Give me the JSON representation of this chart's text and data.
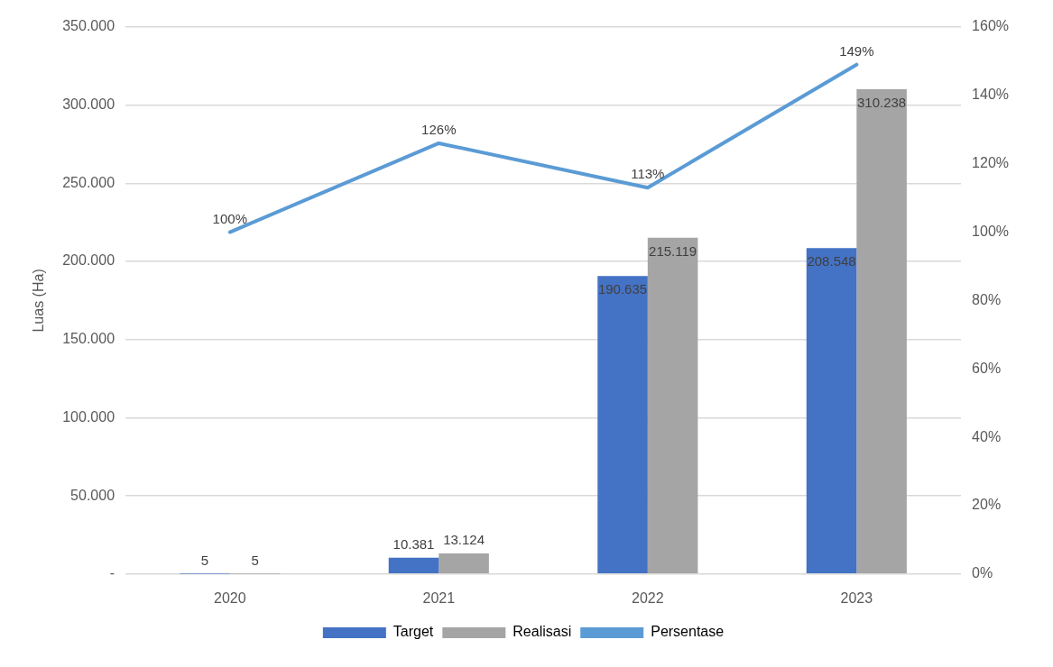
{
  "chart_data": {
    "type": "bar",
    "categories": [
      "2020",
      "2021",
      "2022",
      "2023"
    ],
    "ylabel": "Luas (Ha)",
    "series": [
      {
        "name": "Target",
        "color": "#4472c4",
        "values": [
          5,
          10381,
          190635,
          208548
        ],
        "value_labels": [
          "5",
          "10.381",
          "190.635",
          "208.548"
        ]
      },
      {
        "name": "Realisasi",
        "color": "#a5a5a5",
        "values": [
          5,
          13124,
          215119,
          310238
        ],
        "value_labels": [
          "5",
          "13.124",
          "215.119",
          "310.238"
        ]
      },
      {
        "name": "Persentase",
        "type": "line",
        "axis": "y2",
        "color": "#5b9bd5",
        "marker": "none",
        "values": [
          100,
          126,
          113,
          149
        ],
        "value_labels": [
          "100%",
          "126%",
          "113%",
          "149%"
        ]
      }
    ],
    "ylim": [
      0,
      350000
    ],
    "yticks": [
      {
        "value": 0,
        "label": "-"
      },
      {
        "value": 50000,
        "label": "50.000"
      },
      {
        "value": 100000,
        "label": "100.000"
      },
      {
        "value": 150000,
        "label": "150.000"
      },
      {
        "value": 200000,
        "label": "200.000"
      },
      {
        "value": 250000,
        "label": "250.000"
      },
      {
        "value": 300000,
        "label": "300.000"
      },
      {
        "value": 350000,
        "label": "350.000"
      }
    ],
    "y2lim": [
      0,
      160
    ],
    "y2ticks": [
      {
        "value": 0,
        "label": "0%"
      },
      {
        "value": 20,
        "label": "20%"
      },
      {
        "value": 40,
        "label": "40%"
      },
      {
        "value": 60,
        "label": "60%"
      },
      {
        "value": 80,
        "label": "80%"
      },
      {
        "value": 100,
        "label": "100%"
      },
      {
        "value": 120,
        "label": "120%"
      },
      {
        "value": 140,
        "label": "140%"
      },
      {
        "value": 160,
        "label": "160%"
      }
    ],
    "grid": "y",
    "legend": "bottom"
  }
}
